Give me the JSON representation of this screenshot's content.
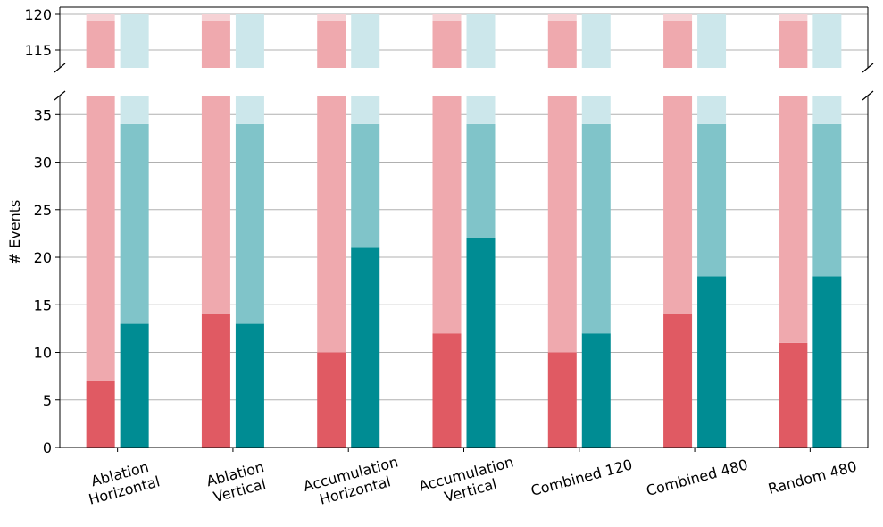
{
  "chart_data": {
    "type": "bar",
    "subtype": "stacked-grouped-broken-axis",
    "title": "",
    "xlabel": "",
    "ylabel": "# Events",
    "grid": true,
    "categories": [
      [
        "Ablation",
        "Horizontal"
      ],
      [
        "Ablation",
        "Vertical"
      ],
      [
        "Accumulation",
        "Horizontal"
      ],
      [
        "Accumulation",
        "Vertical"
      ],
      [
        "Combined 120"
      ],
      [
        "Combined 480"
      ],
      [
        "Random 480"
      ]
    ],
    "series": [
      {
        "group": "red",
        "values_layer1": [
          7,
          14,
          10,
          12,
          10,
          14,
          11
        ],
        "values_layer2": [
          119,
          119,
          119,
          119,
          119,
          119,
          119
        ],
        "values_layer3": [
          120,
          120,
          120,
          120,
          120,
          120,
          120
        ],
        "colors": [
          "#e05a63",
          "#efa9ae",
          "#f6d2d5"
        ]
      },
      {
        "group": "teal",
        "values_layer1": [
          13,
          13,
          21,
          22,
          12,
          18,
          18
        ],
        "values_layer2": [
          34,
          34,
          34,
          34,
          34,
          34,
          34
        ],
        "values_layer3": [
          120,
          120,
          120,
          120,
          120,
          120,
          120
        ],
        "colors": [
          "#008c93",
          "#80c4c9",
          "#cce7eb"
        ]
      }
    ],
    "axes": {
      "lower": {
        "ylim": [
          0,
          37
        ],
        "ticks": [
          0,
          5,
          10,
          15,
          20,
          25,
          30,
          35
        ]
      },
      "upper": {
        "ylim": [
          112.5,
          121
        ],
        "ticks": [
          115,
          120
        ]
      }
    }
  }
}
